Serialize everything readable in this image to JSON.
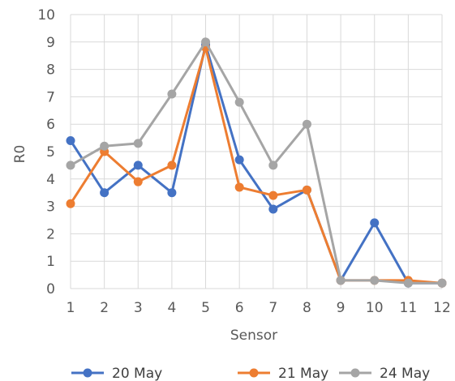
{
  "chart_data": {
    "type": "line",
    "title": "",
    "xlabel": "Sensor",
    "ylabel": "R0",
    "categories": [
      "1",
      "2",
      "3",
      "4",
      "5",
      "6",
      "7",
      "8",
      "9",
      "10",
      "11",
      "12"
    ],
    "ylim": [
      0,
      10
    ],
    "yticks": [
      "0",
      "1",
      "2",
      "3",
      "4",
      "5",
      "6",
      "7",
      "8",
      "9",
      "10"
    ],
    "grid": true,
    "legend_position": "bottom",
    "series": [
      {
        "name": "20 May",
        "color": "#4472c4",
        "values": [
          5.4,
          3.5,
          4.5,
          3.5,
          8.9,
          4.7,
          2.9,
          3.6,
          0.3,
          2.4,
          0.2,
          0.2
        ]
      },
      {
        "name": "21 May",
        "color": "#ed7d31",
        "values": [
          3.1,
          5.0,
          3.9,
          4.5,
          8.8,
          3.7,
          3.4,
          3.6,
          0.3,
          0.3,
          0.3,
          0.2
        ]
      },
      {
        "name": "24 May",
        "color": "#a5a5a5",
        "values": [
          4.5,
          5.2,
          5.3,
          7.1,
          9.0,
          6.8,
          4.5,
          6.0,
          0.3,
          0.3,
          0.2,
          0.2
        ]
      }
    ]
  }
}
